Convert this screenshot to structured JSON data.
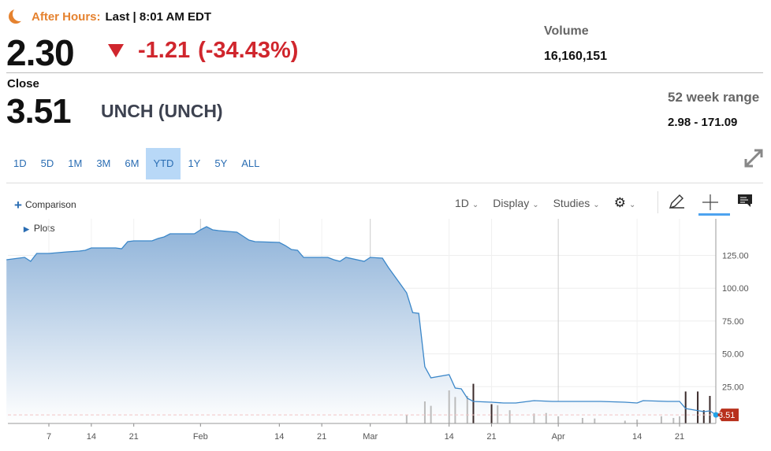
{
  "header": {
    "after_hours_label": "After Hours:",
    "after_hours_status": "Last | 8:01 AM EDT",
    "last_price": "2.30",
    "change": "-1.21",
    "change_pct": "(-34.43%)",
    "volume_label": "Volume",
    "volume_value": "16,160,151",
    "close_label": "Close",
    "close_price": "3.51",
    "name": "UNCH (UNCH)",
    "range_label": "52 week range",
    "range_value": "2.98 - 171.09",
    "colors": {
      "accent": "#e5822f",
      "down": "#d0262d",
      "link": "#2a6db3"
    }
  },
  "ranges": [
    {
      "label": "1D"
    },
    {
      "label": "5D"
    },
    {
      "label": "1M"
    },
    {
      "label": "3M"
    },
    {
      "label": "6M"
    },
    {
      "label": "YTD",
      "selected": true
    },
    {
      "label": "1Y"
    },
    {
      "label": "5Y"
    },
    {
      "label": "ALL"
    }
  ],
  "toolbar": {
    "comparison": "Comparison",
    "interval": "1D",
    "display": "Display",
    "studies": "Studies",
    "plots": "Plots"
  },
  "chart_data": {
    "type": "area",
    "ylim": [
      0,
      150
    ],
    "y_ticks": [
      "25.00",
      "50.00",
      "75.00",
      "100.00",
      "125.00"
    ],
    "y_tick_values": [
      25,
      50,
      75,
      100,
      125
    ],
    "x_ticks": [
      {
        "d": "2022-01-07",
        "l": "7"
      },
      {
        "d": "2022-01-14",
        "l": "14"
      },
      {
        "d": "2022-01-21",
        "l": "21"
      },
      {
        "d": "2022-02-01",
        "l": "Feb"
      },
      {
        "d": "2022-02-14",
        "l": "14"
      },
      {
        "d": "2022-02-21",
        "l": "21"
      },
      {
        "d": "2022-03-01",
        "l": "Mar"
      },
      {
        "d": "2022-03-14",
        "l": "14"
      },
      {
        "d": "2022-03-21",
        "l": "21"
      },
      {
        "d": "2022-04-01",
        "l": "Apr"
      },
      {
        "d": "2022-04-14",
        "l": "14"
      },
      {
        "d": "2022-04-21",
        "l": "21"
      }
    ],
    "last_value_label": "3.51",
    "reference_line": 3.51,
    "series": [
      [
        "2021-12-31",
        121.7
      ],
      [
        "2022-01-03",
        123.5
      ],
      [
        "2022-01-04",
        120.5
      ],
      [
        "2022-01-05",
        126.5
      ],
      [
        "2022-01-07",
        126.5
      ],
      [
        "2022-01-10",
        127.7
      ],
      [
        "2022-01-12",
        128.3
      ],
      [
        "2022-01-13",
        128.9
      ],
      [
        "2022-01-14",
        130.7
      ],
      [
        "2022-01-18",
        130.7
      ],
      [
        "2022-01-19",
        130.1
      ],
      [
        "2022-01-20",
        135.5
      ],
      [
        "2022-01-21",
        136.1
      ],
      [
        "2022-01-24",
        136.1
      ],
      [
        "2022-01-25",
        137.9
      ],
      [
        "2022-01-26",
        139.1
      ],
      [
        "2022-01-27",
        141.5
      ],
      [
        "2022-01-31",
        141.5
      ],
      [
        "2022-02-01",
        144.5
      ],
      [
        "2022-02-02",
        146.9
      ],
      [
        "2022-02-03",
        144.5
      ],
      [
        "2022-02-04",
        143.9
      ],
      [
        "2022-02-07",
        142.7
      ],
      [
        "2022-02-08",
        139.7
      ],
      [
        "2022-02-09",
        136.7
      ],
      [
        "2022-02-10",
        135.5
      ],
      [
        "2022-02-14",
        134.9
      ],
      [
        "2022-02-15",
        132.5
      ],
      [
        "2022-02-16",
        129.5
      ],
      [
        "2022-02-17",
        128.9
      ],
      [
        "2022-02-18",
        123.5
      ],
      [
        "2022-02-22",
        123.5
      ],
      [
        "2022-02-23",
        121.7
      ],
      [
        "2022-02-24",
        120.5
      ],
      [
        "2022-02-25",
        123.5
      ],
      [
        "2022-02-28",
        120.5
      ],
      [
        "2022-03-01",
        123.5
      ],
      [
        "2022-03-03",
        122.9
      ],
      [
        "2022-03-04",
        115.7
      ],
      [
        "2022-03-07",
        96.5
      ],
      [
        "2022-03-08",
        81.5
      ],
      [
        "2022-03-09",
        80.9
      ],
      [
        "2022-03-10",
        40.2
      ],
      [
        "2022-03-11",
        31.8
      ],
      [
        "2022-03-14",
        34.2
      ],
      [
        "2022-03-15",
        24.0
      ],
      [
        "2022-03-16",
        23.4
      ],
      [
        "2022-03-17",
        16.2
      ],
      [
        "2022-03-18",
        13.8
      ],
      [
        "2022-03-21",
        13.2
      ],
      [
        "2022-03-23",
        12.6
      ],
      [
        "2022-03-25",
        12.6
      ],
      [
        "2022-03-28",
        14.4
      ],
      [
        "2022-03-31",
        13.8
      ],
      [
        "2022-04-05",
        13.8
      ],
      [
        "2022-04-08",
        13.8
      ],
      [
        "2022-04-12",
        13.2
      ],
      [
        "2022-04-14",
        12.6
      ],
      [
        "2022-04-15",
        14.4
      ],
      [
        "2022-04-19",
        13.8
      ],
      [
        "2022-04-21",
        13.8
      ],
      [
        "2022-04-22",
        8.4
      ],
      [
        "2022-04-25",
        6.0
      ],
      [
        "2022-04-26",
        6.6
      ],
      [
        "2022-04-27",
        3.51
      ]
    ],
    "volume_relative": [
      [
        "2022-03-07",
        0.15
      ],
      [
        "2022-03-10",
        0.4
      ],
      [
        "2022-03-11",
        0.32
      ],
      [
        "2022-03-14",
        0.6
      ],
      [
        "2022-03-15",
        0.48
      ],
      [
        "2022-03-17",
        0.5
      ],
      [
        "2022-03-18",
        0.72,
        "up"
      ],
      [
        "2022-03-21",
        0.35,
        "up"
      ],
      [
        "2022-03-22",
        0.33
      ],
      [
        "2022-03-24",
        0.24
      ],
      [
        "2022-03-28",
        0.18
      ],
      [
        "2022-03-30",
        0.19
      ],
      [
        "2022-04-01",
        0.13
      ],
      [
        "2022-04-05",
        0.1
      ],
      [
        "2022-04-07",
        0.09
      ],
      [
        "2022-04-12",
        0.05
      ],
      [
        "2022-04-14",
        0.07
      ],
      [
        "2022-04-18",
        0.13
      ],
      [
        "2022-04-20",
        0.1
      ],
      [
        "2022-04-21",
        0.13
      ],
      [
        "2022-04-22",
        0.58,
        "up"
      ],
      [
        "2022-04-24",
        0.58,
        "up"
      ],
      [
        "2022-04-25",
        0.24,
        "up"
      ],
      [
        "2022-04-26",
        0.5,
        "up"
      ]
    ]
  }
}
